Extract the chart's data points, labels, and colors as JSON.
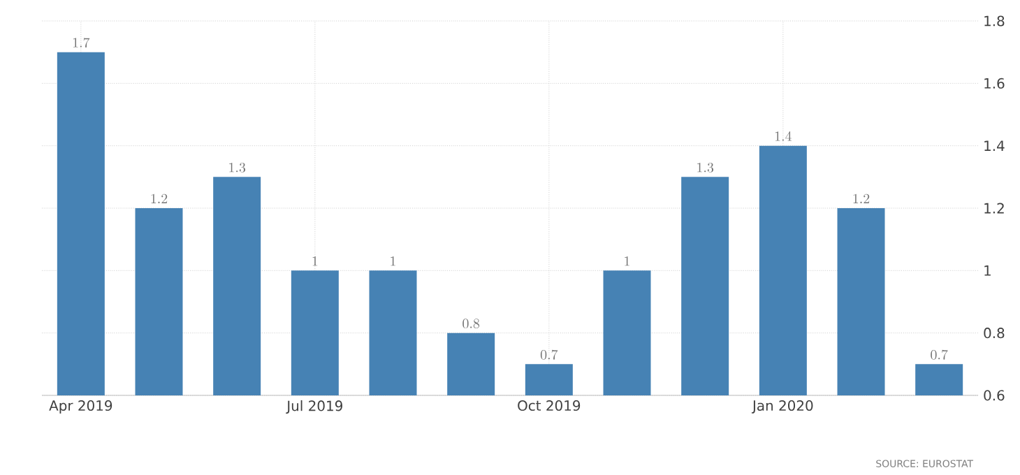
{
  "chart_data": {
    "type": "bar",
    "categories": [
      "Apr 2019",
      null,
      null,
      "Jul 2019",
      null,
      null,
      "Oct 2019",
      null,
      null,
      "Jan 2020",
      null,
      null
    ],
    "values": [
      1.7,
      1.2,
      1.3,
      1,
      1,
      0.8,
      0.7,
      1,
      1.3,
      1.4,
      1.2,
      0.7
    ],
    "color": "#4682b4",
    "ylim": [
      0.6,
      1.8
    ],
    "yticks": [
      0.6,
      0.8,
      1,
      1.2,
      1.4,
      1.6,
      1.8
    ],
    "grid": true,
    "data_labels": true,
    "annotations": [
      "SOURCE: EUROSTAT"
    ]
  }
}
